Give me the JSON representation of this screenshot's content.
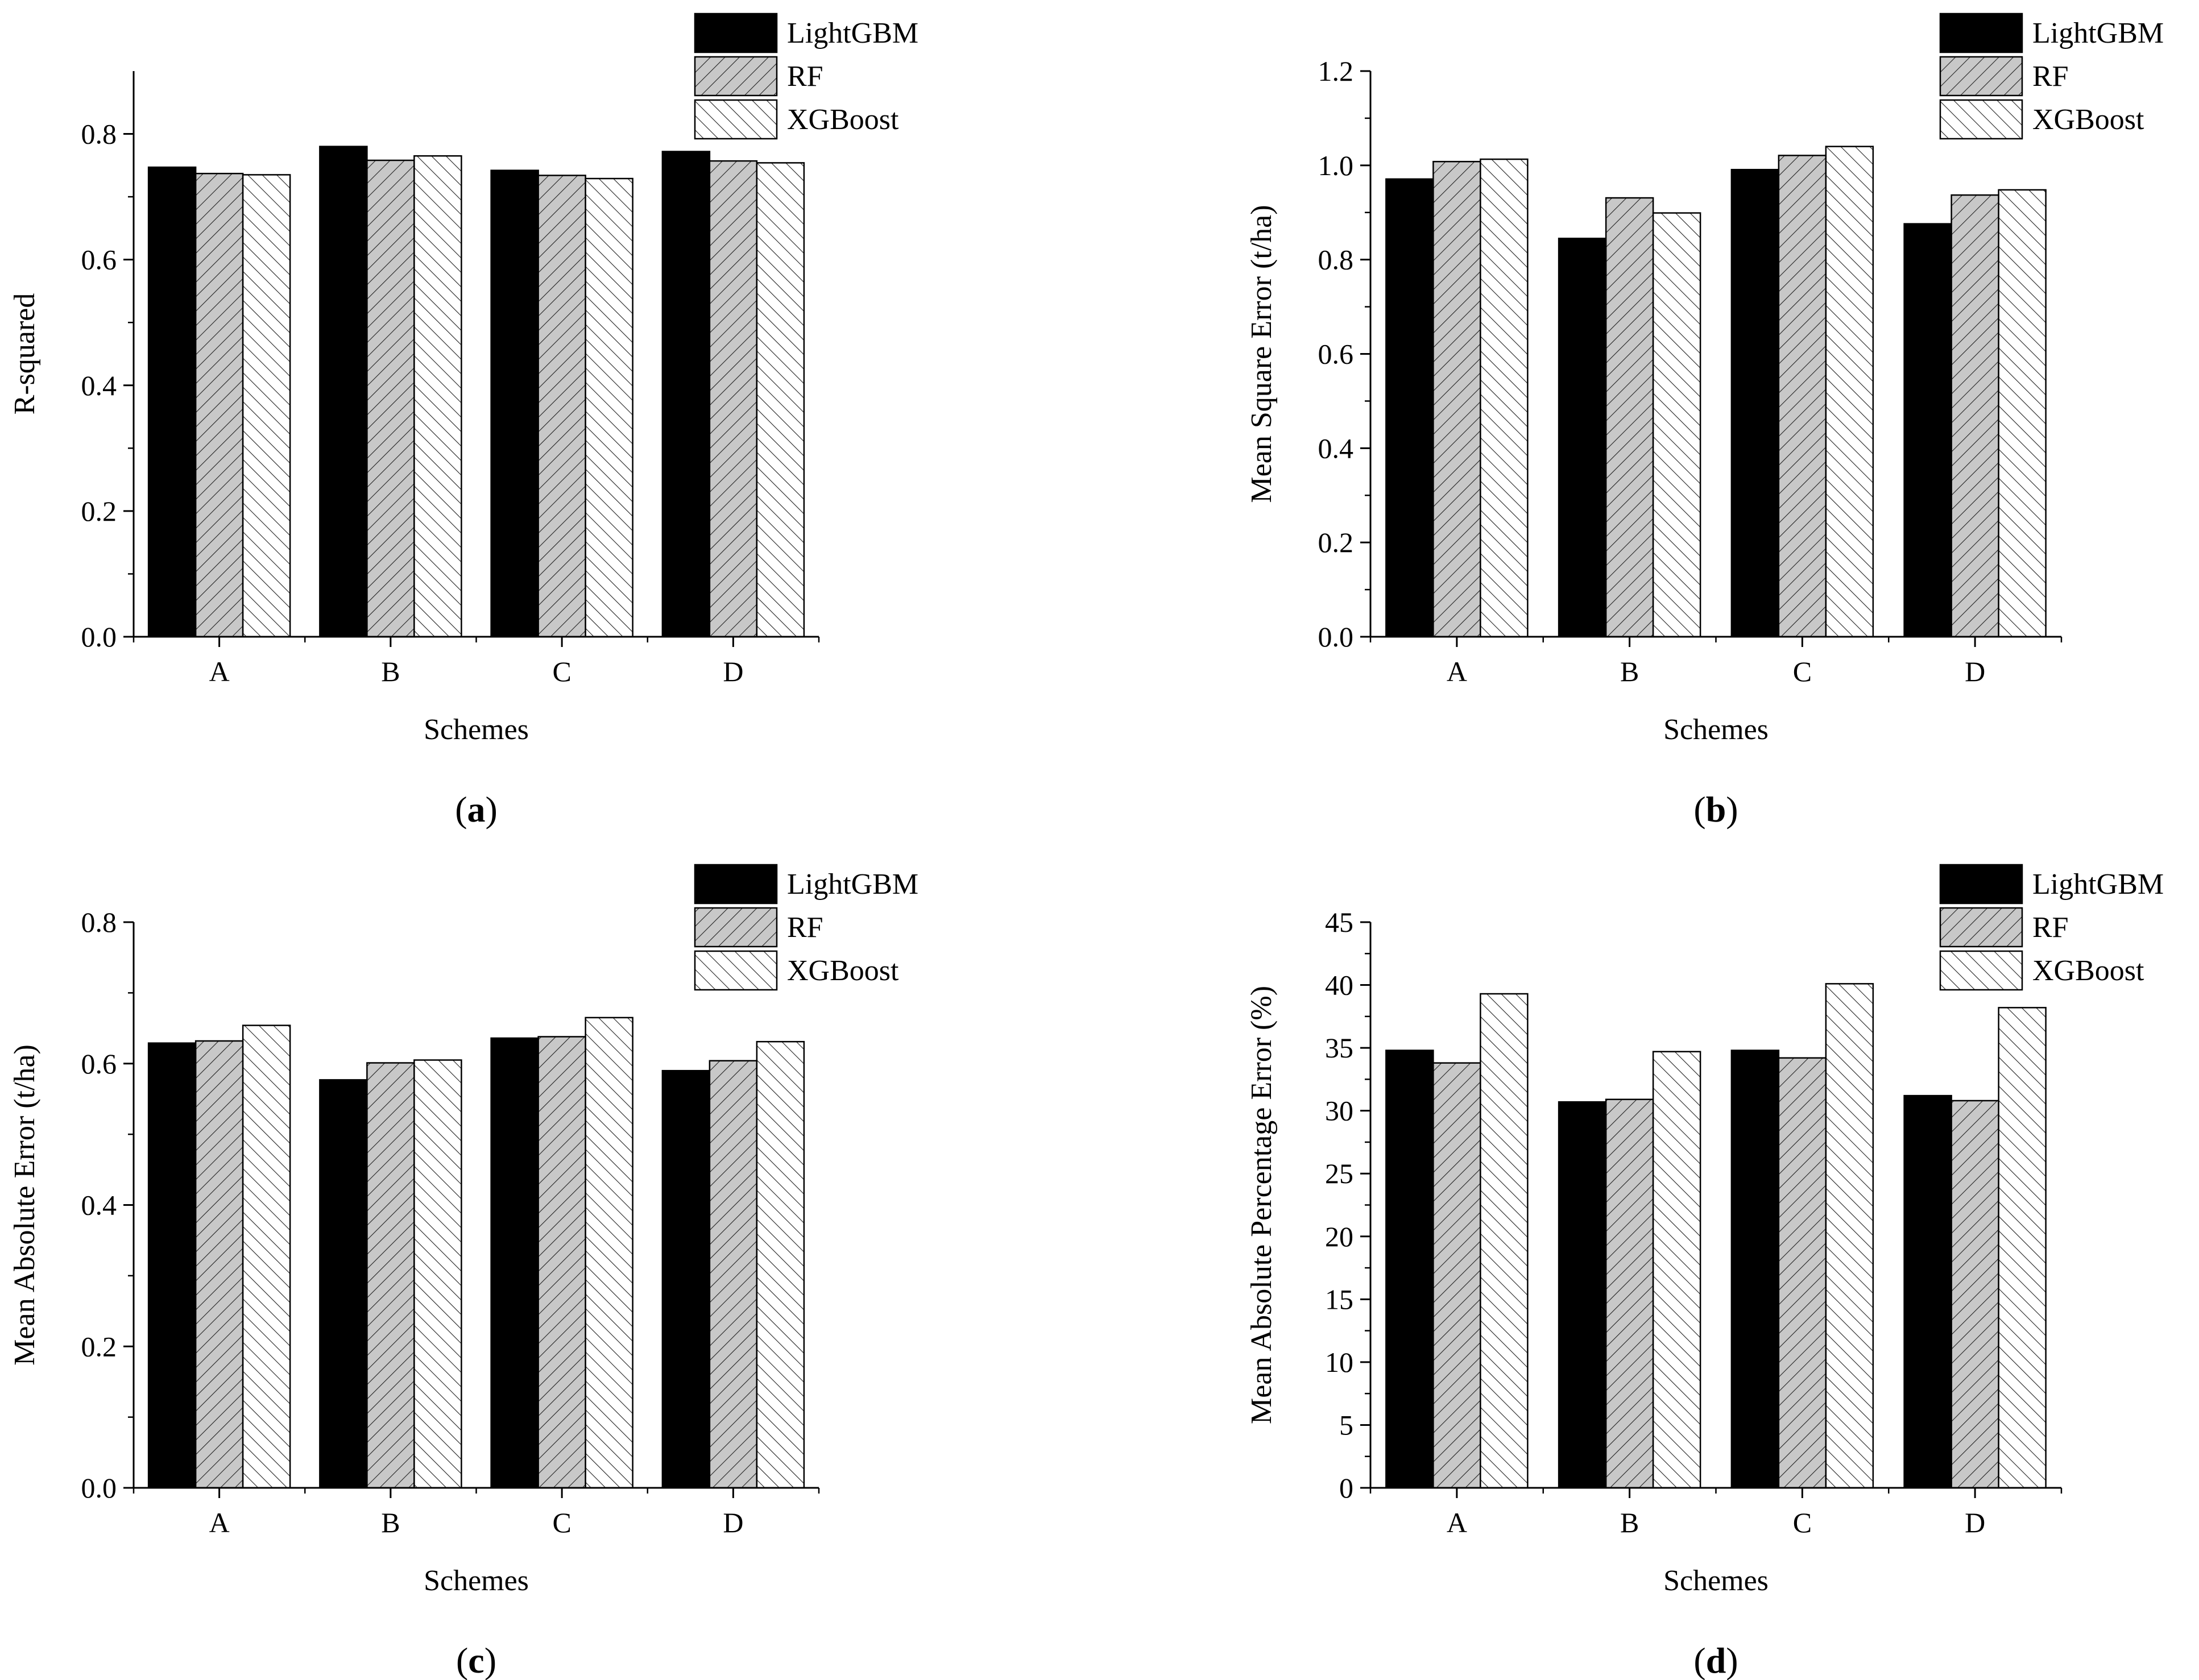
{
  "figure": {
    "series_styles": [
      {
        "name": "LightGBM",
        "fill": "solid",
        "color": "#000000"
      },
      {
        "name": "RF",
        "fill": "hatch-forward",
        "color": "#c8c8c8"
      },
      {
        "name": "XGBoost",
        "fill": "hatch-back",
        "color": "#ffffff"
      }
    ]
  },
  "chart_data": [
    {
      "type": "bar",
      "panel_label": "(a)",
      "panel_letter": "a",
      "xlabel": "Schemes",
      "ylabel": "R-squared",
      "categories": [
        "A",
        "B",
        "C",
        "D"
      ],
      "ylim": [
        0,
        0.9
      ],
      "yticks": [
        0.0,
        0.2,
        0.4,
        0.6,
        0.8
      ],
      "ytick_labels": [
        "0.0",
        "0.2",
        "0.4",
        "0.6",
        "0.8"
      ],
      "legend_position": "top-right",
      "series": [
        {
          "name": "LightGBM",
          "values": [
            0.747,
            0.78,
            0.742,
            0.772
          ]
        },
        {
          "name": "RF",
          "values": [
            0.737,
            0.758,
            0.734,
            0.757
          ]
        },
        {
          "name": "XGBoost",
          "values": [
            0.735,
            0.765,
            0.729,
            0.754
          ]
        }
      ]
    },
    {
      "type": "bar",
      "panel_label": "(b)",
      "panel_letter": "b",
      "xlabel": "Schemes",
      "ylabel": "Mean Square Error (t/ha)",
      "categories": [
        "A",
        "B",
        "C",
        "D"
      ],
      "ylim": [
        0,
        1.2
      ],
      "yticks": [
        0.0,
        0.2,
        0.4,
        0.6,
        0.8,
        1.0,
        1.2
      ],
      "ytick_labels": [
        "0.0",
        "0.2",
        "0.4",
        "0.6",
        "0.8",
        "1.0",
        "1.2"
      ],
      "legend_position": "top-right",
      "series": [
        {
          "name": "LightGBM",
          "values": [
            0.971,
            0.845,
            0.991,
            0.876
          ]
        },
        {
          "name": "RF",
          "values": [
            1.008,
            0.931,
            1.021,
            0.937
          ]
        },
        {
          "name": "XGBoost",
          "values": [
            1.013,
            0.899,
            1.04,
            0.948
          ]
        }
      ]
    },
    {
      "type": "bar",
      "panel_label": "(c)",
      "panel_letter": "c",
      "xlabel": "Schemes",
      "ylabel": "Mean Absolute Error (t/ha)",
      "categories": [
        "A",
        "B",
        "C",
        "D"
      ],
      "ylim": [
        0,
        0.8
      ],
      "yticks": [
        0.0,
        0.2,
        0.4,
        0.6,
        0.8
      ],
      "ytick_labels": [
        "0.0",
        "0.2",
        "0.4",
        "0.6",
        "0.8"
      ],
      "legend_position": "top-right",
      "series": [
        {
          "name": "LightGBM",
          "values": [
            0.629,
            0.577,
            0.636,
            0.59
          ]
        },
        {
          "name": "RF",
          "values": [
            0.632,
            0.601,
            0.638,
            0.604
          ]
        },
        {
          "name": "XGBoost",
          "values": [
            0.654,
            0.605,
            0.665,
            0.631
          ]
        }
      ]
    },
    {
      "type": "bar",
      "panel_label": "(d)",
      "panel_letter": "d",
      "xlabel": "Schemes",
      "ylabel": "Mean Absolute Percentage Error (%)",
      "categories": [
        "A",
        "B",
        "C",
        "D"
      ],
      "ylim": [
        0,
        45
      ],
      "yticks": [
        0,
        5,
        10,
        15,
        20,
        25,
        30,
        35,
        40,
        45
      ],
      "ytick_labels": [
        "0",
        "5",
        "10",
        "15",
        "20",
        "25",
        "30",
        "35",
        "40",
        "45"
      ],
      "legend_position": "top-right",
      "series": [
        {
          "name": "LightGBM",
          "values": [
            34.8,
            30.7,
            34.8,
            31.2
          ]
        },
        {
          "name": "RF",
          "values": [
            33.8,
            30.9,
            34.2,
            30.8
          ]
        },
        {
          "name": "XGBoost",
          "values": [
            39.3,
            34.7,
            40.1,
            38.2
          ]
        }
      ]
    }
  ]
}
